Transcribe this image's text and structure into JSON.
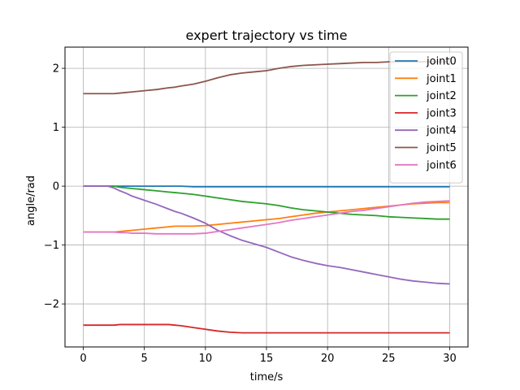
{
  "chart_data": {
    "type": "line",
    "title": "expert trajectory vs time",
    "xlabel": "time/s",
    "ylabel": "angle/rad",
    "xlim": [
      -1.5,
      31.5
    ],
    "ylim": [
      -2.73,
      2.36
    ],
    "xticks": [
      0,
      5,
      10,
      15,
      20,
      25,
      30
    ],
    "xtick_labels": [
      "0",
      "5",
      "10",
      "15",
      "20",
      "25",
      "30"
    ],
    "yticks": [
      -2,
      -1,
      0,
      1,
      2
    ],
    "ytick_labels": [
      "−2",
      "−1",
      "0",
      "1",
      "2"
    ],
    "grid": true,
    "legend_position": "top-right",
    "x": [
      0,
      1,
      2,
      2.5,
      3,
      3.5,
      4,
      5,
      6,
      7,
      7.5,
      8,
      9,
      10,
      11,
      12,
      13,
      14,
      15,
      16,
      17,
      18,
      19,
      20,
      21,
      22,
      23,
      24,
      25,
      26,
      27,
      28,
      29,
      30
    ],
    "series": [
      {
        "name": "joint0",
        "color": "#1f77b4",
        "values": [
          0.0,
          0.0,
          0.0,
          0.0,
          0.0,
          0.0,
          0.0,
          0.0,
          0.0,
          0.0,
          0.0,
          0.0,
          -0.01,
          -0.01,
          -0.01,
          -0.01,
          -0.01,
          -0.01,
          -0.01,
          -0.01,
          -0.01,
          -0.01,
          -0.01,
          -0.01,
          -0.01,
          -0.01,
          -0.01,
          -0.01,
          -0.01,
          -0.01,
          -0.01,
          -0.01,
          -0.01,
          -0.01
        ]
      },
      {
        "name": "joint1",
        "color": "#ff7f0e",
        "values": [
          -0.78,
          -0.78,
          -0.78,
          -0.78,
          -0.77,
          -0.76,
          -0.75,
          -0.73,
          -0.71,
          -0.69,
          -0.68,
          -0.68,
          -0.68,
          -0.67,
          -0.65,
          -0.63,
          -0.61,
          -0.59,
          -0.57,
          -0.55,
          -0.52,
          -0.49,
          -0.46,
          -0.44,
          -0.42,
          -0.4,
          -0.38,
          -0.36,
          -0.34,
          -0.32,
          -0.3,
          -0.29,
          -0.28,
          -0.28
        ]
      },
      {
        "name": "joint2",
        "color": "#2ca02c",
        "values": [
          0.0,
          0.0,
          0.0,
          0.0,
          -0.02,
          -0.03,
          -0.04,
          -0.06,
          -0.08,
          -0.1,
          -0.11,
          -0.12,
          -0.14,
          -0.17,
          -0.2,
          -0.23,
          -0.26,
          -0.28,
          -0.3,
          -0.33,
          -0.37,
          -0.4,
          -0.42,
          -0.44,
          -0.46,
          -0.48,
          -0.49,
          -0.5,
          -0.52,
          -0.53,
          -0.54,
          -0.55,
          -0.56,
          -0.56
        ]
      },
      {
        "name": "joint3",
        "color": "#d62728",
        "values": [
          -2.36,
          -2.36,
          -2.36,
          -2.36,
          -2.35,
          -2.35,
          -2.35,
          -2.35,
          -2.35,
          -2.35,
          -2.36,
          -2.37,
          -2.4,
          -2.43,
          -2.46,
          -2.48,
          -2.49,
          -2.49,
          -2.49,
          -2.49,
          -2.49,
          -2.49,
          -2.49,
          -2.49,
          -2.49,
          -2.49,
          -2.49,
          -2.49,
          -2.49,
          -2.49,
          -2.49,
          -2.49,
          -2.49,
          -2.49
        ]
      },
      {
        "name": "joint4",
        "color": "#9467bd",
        "values": [
          0.0,
          0.0,
          0.0,
          -0.03,
          -0.08,
          -0.12,
          -0.17,
          -0.24,
          -0.31,
          -0.39,
          -0.43,
          -0.46,
          -0.54,
          -0.63,
          -0.75,
          -0.84,
          -0.92,
          -0.98,
          -1.04,
          -1.12,
          -1.2,
          -1.26,
          -1.31,
          -1.35,
          -1.38,
          -1.42,
          -1.46,
          -1.5,
          -1.54,
          -1.58,
          -1.61,
          -1.63,
          -1.65,
          -1.66
        ]
      },
      {
        "name": "joint5",
        "color": "#8c564b",
        "values": [
          1.57,
          1.57,
          1.57,
          1.57,
          1.58,
          1.59,
          1.6,
          1.62,
          1.64,
          1.67,
          1.68,
          1.7,
          1.73,
          1.78,
          1.84,
          1.89,
          1.92,
          1.94,
          1.96,
          2.0,
          2.03,
          2.05,
          2.06,
          2.07,
          2.08,
          2.09,
          2.1,
          2.1,
          2.11,
          2.11,
          2.11,
          2.11,
          2.11,
          2.11
        ]
      },
      {
        "name": "joint6",
        "color": "#e377c2",
        "values": [
          -0.78,
          -0.78,
          -0.78,
          -0.78,
          -0.79,
          -0.79,
          -0.8,
          -0.8,
          -0.81,
          -0.81,
          -0.81,
          -0.81,
          -0.81,
          -0.8,
          -0.77,
          -0.74,
          -0.71,
          -0.68,
          -0.65,
          -0.62,
          -0.58,
          -0.55,
          -0.52,
          -0.49,
          -0.46,
          -0.43,
          -0.41,
          -0.38,
          -0.35,
          -0.32,
          -0.29,
          -0.27,
          -0.26,
          -0.25
        ]
      }
    ]
  }
}
